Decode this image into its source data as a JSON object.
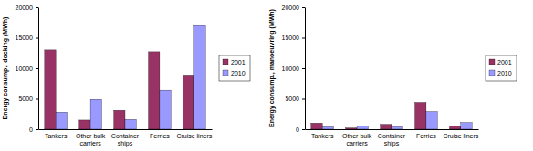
{
  "chart_data": [
    {
      "type": "bar",
      "y_label": "Energy consump., docking (MWh)",
      "categories": [
        "Tankers",
        "Other bulk carriers",
        "Container ships",
        "Ferries",
        "Cruise liners"
      ],
      "series": [
        {
          "name": "2001",
          "color": "#993366",
          "values": [
            13000,
            1500,
            3100,
            12700,
            8900
          ]
        },
        {
          "name": "2010",
          "color": "#9999ff",
          "values": [
            2800,
            4900,
            1600,
            6400,
            17000
          ]
        }
      ],
      "ylim": [
        0,
        20000
      ],
      "yticks": [
        0,
        5000,
        10000,
        15000,
        20000
      ],
      "legend": "right"
    },
    {
      "type": "bar",
      "y_label": "Energy consump., manoeuvring (MWh)",
      "categories": [
        "Tankers",
        "Other bulk carriers",
        "Container ships",
        "Ferries",
        "Cruise liners"
      ],
      "series": [
        {
          "name": "2001",
          "color": "#993366",
          "values": [
            1000,
            200,
            800,
            4400,
            500
          ]
        },
        {
          "name": "2010",
          "color": "#9999ff",
          "values": [
            400,
            500,
            400,
            2900,
            1100
          ]
        }
      ],
      "ylim": [
        0,
        20000
      ],
      "yticks": [
        0,
        5000,
        10000,
        15000,
        20000
      ],
      "legend": "right"
    }
  ]
}
